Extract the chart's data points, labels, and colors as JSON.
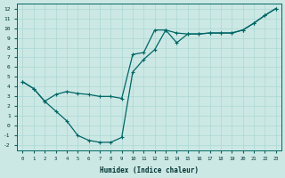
{
  "xlabel": "Humidex (Indice chaleur)",
  "bg_color": "#cce8e4",
  "grid_color": "#aad8d4",
  "line_color": "#006666",
  "xlim": [
    -0.5,
    23.5
  ],
  "ylim": [
    -2.5,
    12.5
  ],
  "xticks": [
    0,
    1,
    2,
    3,
    4,
    5,
    6,
    7,
    8,
    9,
    10,
    11,
    12,
    13,
    14,
    15,
    16,
    17,
    18,
    19,
    20,
    21,
    22,
    23
  ],
  "yticks": [
    -2,
    -1,
    0,
    1,
    2,
    3,
    4,
    5,
    6,
    7,
    8,
    9,
    10,
    11,
    12
  ],
  "curve1_x": [
    0,
    1,
    2,
    3,
    4,
    5,
    6,
    7,
    8,
    9,
    10,
    11,
    12,
    13,
    14,
    15,
    16,
    17,
    18,
    19,
    20,
    21,
    22,
    23
  ],
  "curve1_y": [
    4.5,
    3.8,
    2.5,
    3.2,
    3.5,
    3.3,
    3.2,
    3.0,
    3.0,
    2.8,
    7.3,
    7.5,
    9.8,
    9.8,
    9.5,
    9.4,
    9.4,
    9.5,
    9.5,
    9.5,
    9.8,
    10.5,
    11.3,
    12.0
  ],
  "curve2_x": [
    0,
    1,
    2,
    3,
    4,
    5,
    6,
    7,
    8,
    9,
    10,
    11,
    12,
    13,
    14,
    15,
    16,
    17,
    18,
    19,
    20,
    21,
    22,
    23
  ],
  "curve2_y": [
    4.5,
    3.8,
    2.5,
    1.5,
    0.5,
    -1.0,
    -1.5,
    -1.7,
    -1.7,
    -1.2,
    5.5,
    6.8,
    7.8,
    9.8,
    8.5,
    9.4,
    9.4,
    9.5,
    9.5,
    9.5,
    9.8,
    10.5,
    11.3,
    12.0
  ]
}
